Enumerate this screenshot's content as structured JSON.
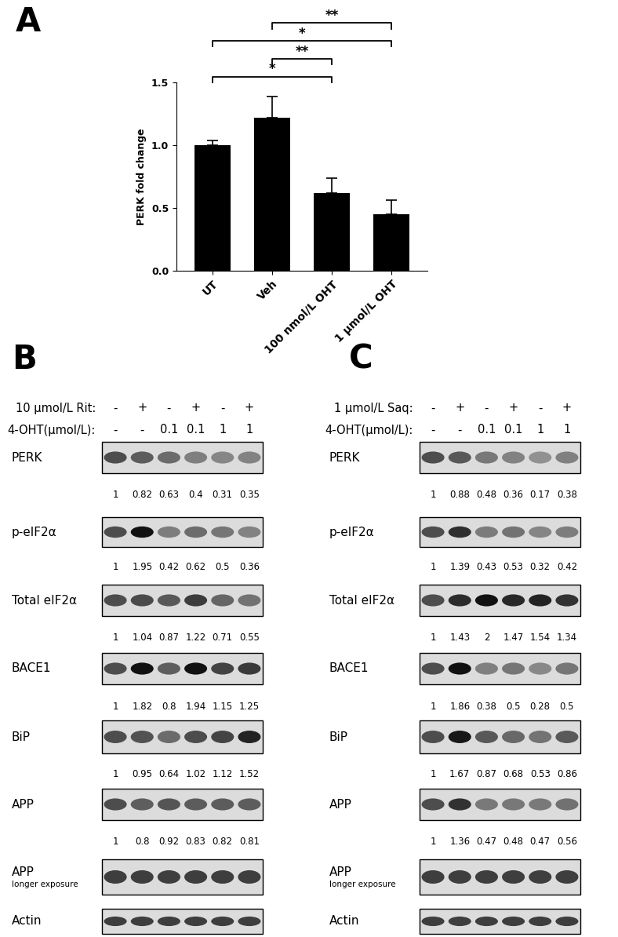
{
  "chart_data": {
    "type": "bar",
    "panel": "A",
    "categories": [
      "UT",
      "Veh",
      "100 nmol/L OHT",
      "1 µmol/L OHT"
    ],
    "values": [
      1.0,
      1.22,
      0.62,
      0.45
    ],
    "errors": [
      0.04,
      0.17,
      0.12,
      0.11
    ],
    "color": "#000000",
    "y_label": "PERK fold change",
    "ylim": [
      0,
      1.5
    ],
    "yticks": [
      {
        "value": 0,
        "label": "0.0"
      },
      {
        "value": 0.5,
        "label": "0.5"
      },
      {
        "value": 1.0,
        "label": "1.0"
      },
      {
        "value": 1.5,
        "label": "1.5"
      }
    ],
    "grid": false,
    "significance": [
      {
        "from": "Veh",
        "to": "1 µmol/L OHT",
        "label": "**"
      },
      {
        "from": "UT",
        "to": "1 µmol/L OHT",
        "label": "*"
      },
      {
        "from": "Veh",
        "to": "100 nmol/L OHT",
        "label": "**"
      },
      {
        "from": "UT",
        "to": "100 nmol/L OHT",
        "label": "*"
      }
    ]
  },
  "blots": [
    {
      "panel": "B",
      "header": [
        {
          "label": "10 µmol/L Rit:",
          "lanes": [
            "-",
            "+",
            "-",
            "+",
            "-",
            "+"
          ]
        },
        {
          "label": "4-OHT(µmol/L):",
          "lanes": [
            "-",
            "-",
            "0.1",
            "0.1",
            "1",
            "1"
          ]
        }
      ],
      "rows": [
        {
          "label": "PERK",
          "values": [
            1,
            0.82,
            0.63,
            0.4,
            0.31,
            0.35
          ]
        },
        {
          "label": "p-eIF2α",
          "values": [
            1,
            1.95,
            0.42,
            0.62,
            0.5,
            0.36
          ]
        },
        {
          "label": "Total eIF2α",
          "values": [
            1,
            1.04,
            0.87,
            1.22,
            0.71,
            0.55
          ]
        },
        {
          "label": "BACE1",
          "values": [
            1,
            1.82,
            0.8,
            1.94,
            1.15,
            1.25
          ]
        },
        {
          "label": "BiP",
          "values": [
            1,
            0.95,
            0.64,
            1.02,
            1.12,
            1.52
          ]
        },
        {
          "label": "APP",
          "values": [
            1,
            0.8,
            0.92,
            0.83,
            0.82,
            0.81
          ]
        },
        {
          "label": "APP",
          "sublabel": "longer exposure"
        },
        {
          "label": "Actin"
        }
      ]
    },
    {
      "panel": "C",
      "header": [
        {
          "label": "1 µmol/L Saq:",
          "lanes": [
            "-",
            "+",
            "-",
            "+",
            "-",
            "+"
          ]
        },
        {
          "label": "4-OHT(µmol/L):",
          "lanes": [
            "-",
            "-",
            "0.1",
            "0.1",
            "1",
            "1"
          ]
        }
      ],
      "rows": [
        {
          "label": "PERK",
          "values": [
            1,
            0.88,
            0.48,
            0.36,
            0.17,
            0.38
          ]
        },
        {
          "label": "p-eIF2α",
          "values": [
            1,
            1.39,
            0.43,
            0.53,
            0.32,
            0.42
          ]
        },
        {
          "label": "Total eIF2α",
          "values": [
            1,
            1.43,
            2,
            1.47,
            1.54,
            1.34
          ]
        },
        {
          "label": "BACE1",
          "values": [
            1,
            1.86,
            0.38,
            0.5,
            0.28,
            0.5
          ]
        },
        {
          "label": "BiP",
          "values": [
            1,
            1.67,
            0.87,
            0.68,
            0.53,
            0.86
          ]
        },
        {
          "label": "APP",
          "values": [
            1,
            1.36,
            0.47,
            0.48,
            0.47,
            0.56
          ]
        },
        {
          "label": "APP",
          "sublabel": "longer exposure"
        },
        {
          "label": "Actin"
        }
      ]
    }
  ]
}
